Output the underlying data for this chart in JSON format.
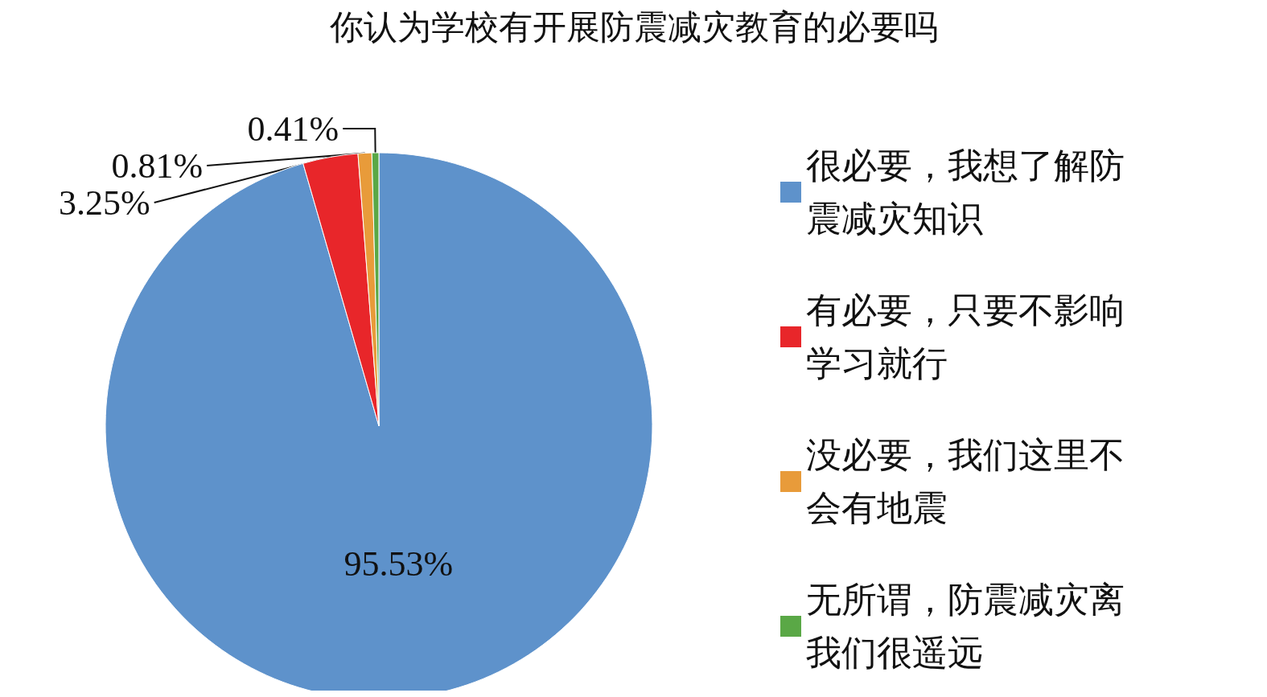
{
  "chart_data": {
    "type": "pie",
    "title": "你认为学校有开展防震减灾教育的必要吗",
    "categories": [
      "很必要，我想了解防震减灾知识",
      "有必要，只要不影响学习就行",
      "没必要，我们这里不会有地震",
      "无所谓，防震减灾离我们很遥远"
    ],
    "values": [
      95.53,
      3.25,
      0.81,
      0.41
    ],
    "value_labels": [
      "95.53%",
      "3.25%",
      "0.81%",
      "0.41%"
    ],
    "colors": [
      "#5e92cb",
      "#e8262a",
      "#e89b3a",
      "#5aa846"
    ],
    "legend": "right"
  }
}
